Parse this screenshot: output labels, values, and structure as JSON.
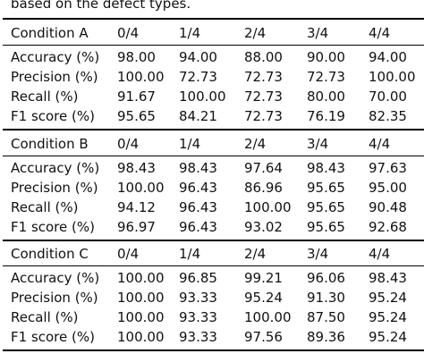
{
  "caption": "based on the defect types.",
  "columns": [
    "0/4",
    "1/4",
    "2/4",
    "3/4",
    "4/4"
  ],
  "sections": [
    {
      "condition": "Condition A",
      "rows": [
        {
          "metric": "Accuracy (%)",
          "values": [
            "98.00",
            "94.00",
            "88.00",
            "90.00",
            "94.00"
          ]
        },
        {
          "metric": "Precision (%)",
          "values": [
            "100.00",
            "72.73",
            "72.73",
            "72.73",
            "100.00"
          ]
        },
        {
          "metric": "Recall (%)",
          "values": [
            "91.67",
            "100.00",
            "72.73",
            "80.00",
            "70.00"
          ]
        },
        {
          "metric": "F1 score (%)",
          "values": [
            "95.65",
            "84.21",
            "72.73",
            "76.19",
            "82.35"
          ]
        }
      ]
    },
    {
      "condition": "Condition B",
      "rows": [
        {
          "metric": "Accuracy (%)",
          "values": [
            "98.43",
            "98.43",
            "97.64",
            "98.43",
            "97.63"
          ]
        },
        {
          "metric": "Precision (%)",
          "values": [
            "100.00",
            "96.43",
            "86.96",
            "95.65",
            "95.00"
          ]
        },
        {
          "metric": "Recall (%)",
          "values": [
            "94.12",
            "96.43",
            "100.00",
            "95.65",
            "90.48"
          ]
        },
        {
          "metric": "F1 score (%)",
          "values": [
            "96.97",
            "96.43",
            "93.02",
            "95.65",
            "92.68"
          ]
        }
      ]
    },
    {
      "condition": "Condition C",
      "rows": [
        {
          "metric": "Accuracy (%)",
          "values": [
            "100.00",
            "96.85",
            "99.21",
            "96.06",
            "98.43"
          ]
        },
        {
          "metric": "Precision (%)",
          "values": [
            "100.00",
            "93.33",
            "95.24",
            "91.30",
            "95.24"
          ]
        },
        {
          "metric": "Recall (%)",
          "values": [
            "100.00",
            "93.33",
            "100.00",
            "87.50",
            "95.24"
          ]
        },
        {
          "metric": "F1 score (%)",
          "values": [
            "100.00",
            "93.33",
            "97.56",
            "89.36",
            "95.24"
          ]
        }
      ]
    }
  ]
}
